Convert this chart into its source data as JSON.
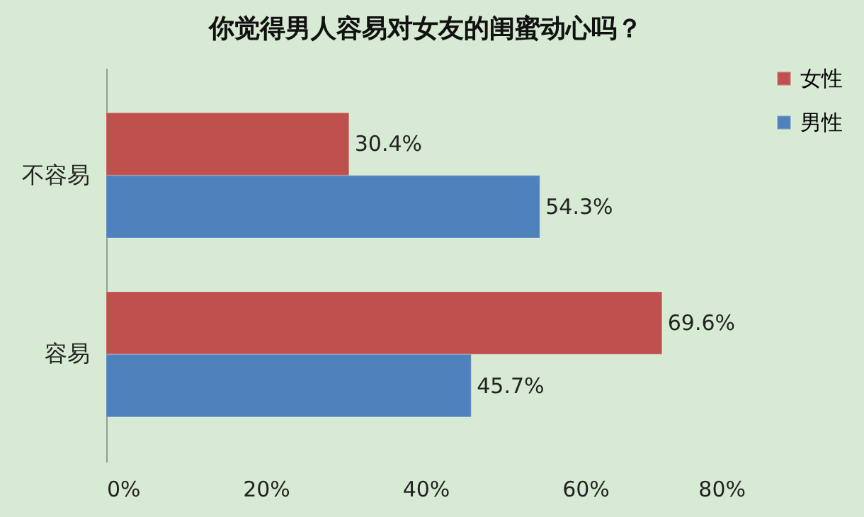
{
  "chart_data": {
    "type": "bar",
    "orientation": "horizontal",
    "title": "你觉得男人容易对女友的闺蜜动心吗？",
    "categories": [
      "不容易",
      "容易"
    ],
    "series": [
      {
        "name": "女性",
        "color": "#c0504d",
        "values": [
          30.4,
          69.6
        ],
        "value_labels": [
          "30.4%",
          "69.6%"
        ]
      },
      {
        "name": "男性",
        "color": "#4f81bd",
        "values": [
          54.3,
          45.7
        ],
        "value_labels": [
          "54.3%",
          "45.7%"
        ]
      }
    ],
    "xlim": [
      0,
      80
    ],
    "xticks": [
      {
        "value": 0,
        "label": "0%"
      },
      {
        "value": 20,
        "label": "20%"
      },
      {
        "value": 40,
        "label": "40%"
      },
      {
        "value": 60,
        "label": "60%"
      },
      {
        "value": 80,
        "label": "80%"
      }
    ],
    "legend": "right",
    "grid": false
  }
}
